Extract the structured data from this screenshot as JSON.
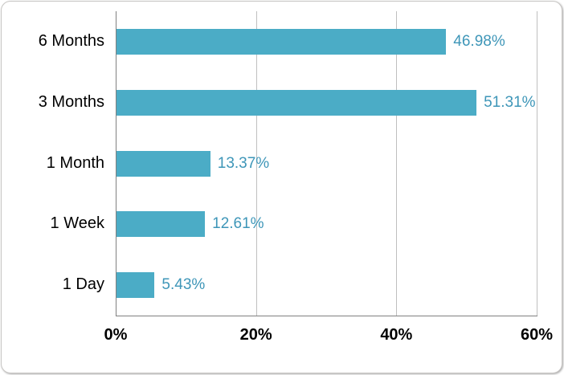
{
  "chart_data": {
    "type": "bar",
    "orientation": "horizontal",
    "title": "",
    "xlabel": "",
    "ylabel": "",
    "categories": [
      "6 Months",
      "3 Months",
      "1 Month",
      "1 Week",
      "1 Day"
    ],
    "values": [
      46.98,
      51.31,
      13.37,
      12.61,
      5.43
    ],
    "value_labels": [
      "46.98%",
      "51.31%",
      "13.37%",
      "12.61%",
      "5.43%"
    ],
    "xlim": [
      0,
      60
    ],
    "x_ticks": [
      {
        "value": 0,
        "label": "0%"
      },
      {
        "value": 20,
        "label": "20%"
      },
      {
        "value": 40,
        "label": "40%"
      },
      {
        "value": 60,
        "label": "60%"
      }
    ],
    "gridline_values": [
      20,
      40,
      60
    ],
    "grid": "vertical-on",
    "legend": "none",
    "colors": {
      "bar_fill": "#4BACC6",
      "value_label": "#3E96B8",
      "axis_line": "#808080",
      "gridline": "#BFBFBF",
      "category_label": "#000000",
      "tick_label": "#000000",
      "frame_border": "#C8C6C4",
      "background": "#FFFFFF"
    }
  }
}
